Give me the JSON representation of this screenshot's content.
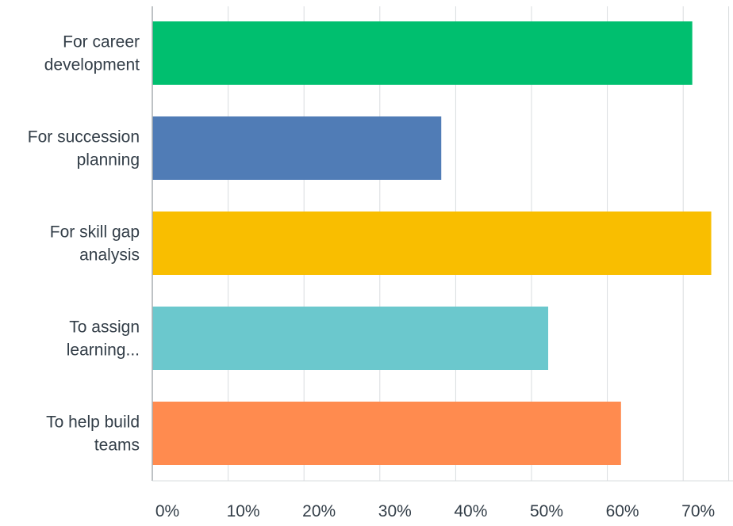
{
  "chart_data": {
    "type": "bar",
    "orientation": "horizontal",
    "categories": [
      [
        "For career",
        "development"
      ],
      [
        "For succession",
        "planning"
      ],
      [
        "For skill gap",
        "analysis"
      ],
      [
        "To assign",
        "learning..."
      ],
      [
        "To help build",
        "teams"
      ]
    ],
    "values": [
      71.2,
      38.1,
      73.7,
      52.2,
      61.8
    ],
    "colors": [
      "#00bf6f",
      "#507cb6",
      "#f9be00",
      "#6bc8cd",
      "#ff8b4f"
    ],
    "x_ticks": [
      "0%",
      "10%",
      "20%",
      "30%",
      "40%",
      "50%",
      "60%",
      "70%"
    ],
    "xlim": [
      0,
      76
    ],
    "grid": true,
    "title": "",
    "xlabel": "",
    "ylabel": ""
  }
}
